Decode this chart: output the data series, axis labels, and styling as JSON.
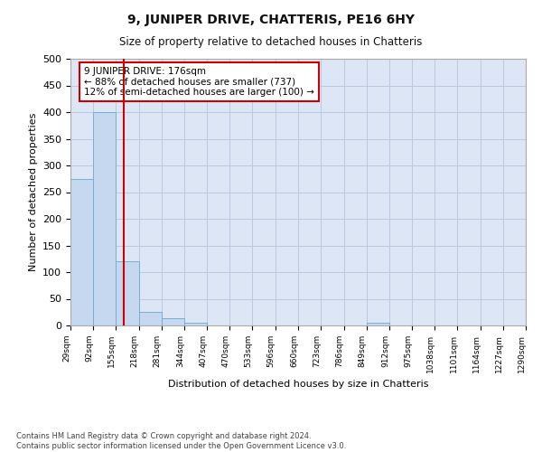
{
  "title": "9, JUNIPER DRIVE, CHATTERIS, PE16 6HY",
  "subtitle": "Size of property relative to detached houses in Chatteris",
  "xlabel": "Distribution of detached houses by size in Chatteris",
  "ylabel": "Number of detached properties",
  "bar_color": "#c5d8f0",
  "bar_edge_color": "#7aadd4",
  "background_color": "#ffffff",
  "plot_bg_color": "#dce6f5",
  "grid_color": "#b8c9e0",
  "annotation_box_color": "#cc0000",
  "annotation_line_color": "#cc0000",
  "annotation_line1": "9 JUNIPER DRIVE: 176sqm",
  "annotation_line2": "← 88% of detached houses are smaller (737)",
  "annotation_line3": "12% of semi-detached houses are larger (100) →",
  "property_value_sqm": 176,
  "categories": [
    "29sqm",
    "92sqm",
    "155sqm",
    "218sqm",
    "281sqm",
    "344sqm",
    "407sqm",
    "470sqm",
    "533sqm",
    "596sqm",
    "660sqm",
    "723sqm",
    "786sqm",
    "849sqm",
    "912sqm",
    "975sqm",
    "1038sqm",
    "1101sqm",
    "1164sqm",
    "1227sqm",
    "1290sqm"
  ],
  "bin_edges": [
    29,
    92,
    155,
    218,
    281,
    344,
    407,
    470,
    533,
    596,
    660,
    723,
    786,
    849,
    912,
    975,
    1038,
    1101,
    1164,
    1227,
    1290
  ],
  "bar_heights": [
    275,
    400,
    120,
    25,
    13,
    5,
    0,
    0,
    0,
    0,
    0,
    0,
    0,
    5,
    0,
    0,
    0,
    0,
    0,
    0
  ],
  "ylim": [
    0,
    500
  ],
  "yticks": [
    0,
    50,
    100,
    150,
    200,
    250,
    300,
    350,
    400,
    450,
    500
  ],
  "footer_text": "Contains HM Land Registry data © Crown copyright and database right 2024.\nContains public sector information licensed under the Open Government Licence v3.0.",
  "fig_width": 6.0,
  "fig_height": 5.0,
  "dpi": 100
}
